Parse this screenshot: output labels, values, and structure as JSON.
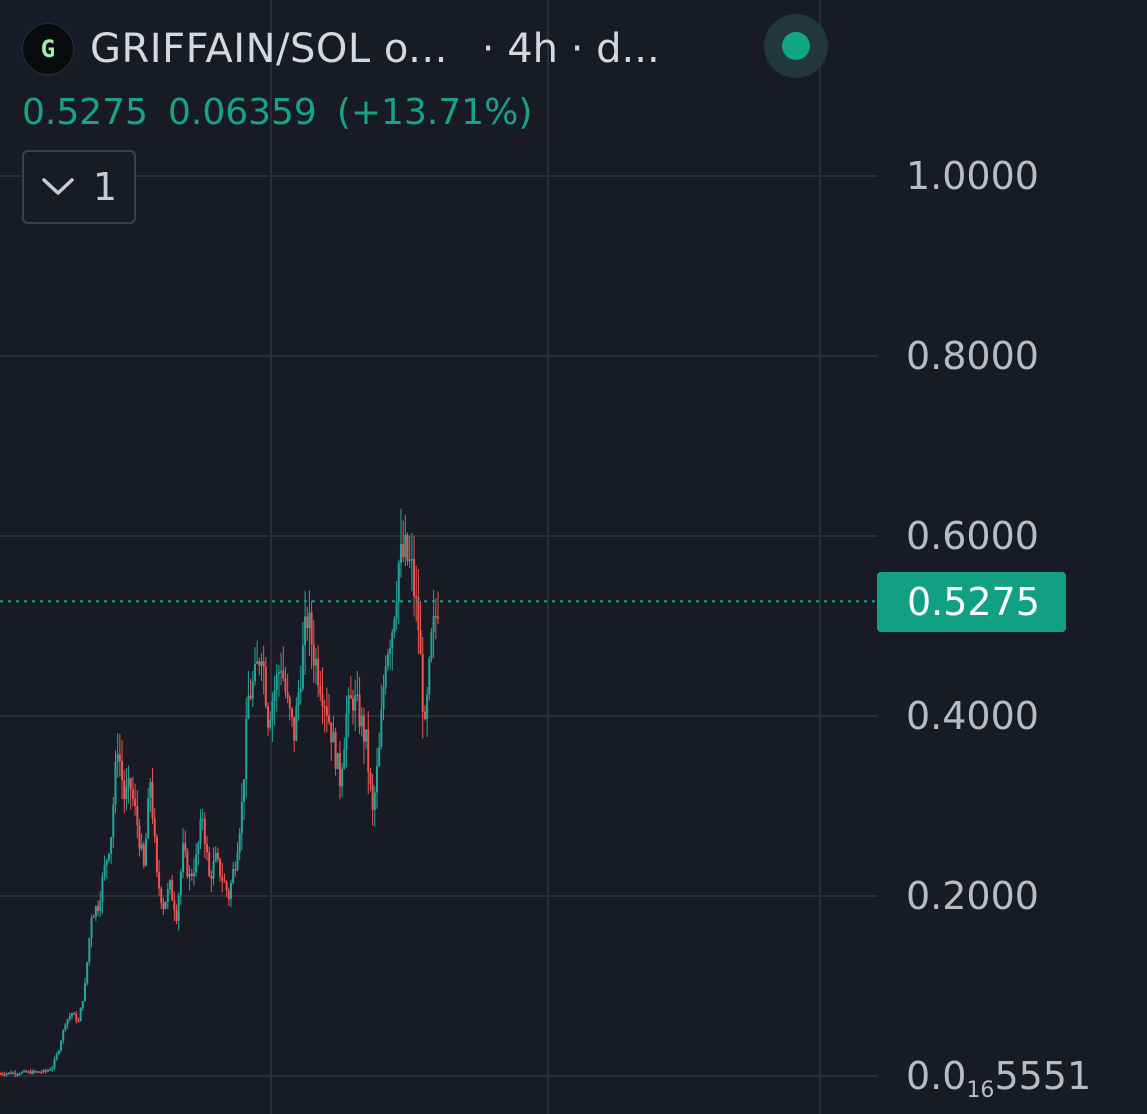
{
  "header": {
    "logo_letter": "G",
    "symbol": "GRIFFAIN/SOL o...",
    "interval": "· 4h · d...",
    "status_color": "#10a684"
  },
  "legend": {
    "last_price": "0.5275",
    "change": "0.06359",
    "change_pct": "(+13.71%)"
  },
  "indicators_toggle": {
    "count": "1"
  },
  "price_tag": "0.5275",
  "colors": {
    "background": "#181b26",
    "up": "#26a69a",
    "down": "#ef5350",
    "grid": "#2b2e39",
    "accent": "#12a085"
  },
  "chart_data": {
    "type": "candlestick",
    "title": "",
    "interval": "4h",
    "y_axis": {
      "ticks": [
        {
          "value": 1.0,
          "label": "1.0000"
        },
        {
          "value": 0.8,
          "label": "0.8000"
        },
        {
          "value": 0.6,
          "label": "0.6000"
        },
        {
          "value": 0.4,
          "label": "0.4000"
        },
        {
          "value": 0.2,
          "label": "0.2000"
        },
        {
          "value": 0.0,
          "label_prefix": "0.0",
          "label_sub": "16",
          "label_suffix": "5551"
        }
      ],
      "range": [
        -0.02,
        1.1
      ]
    },
    "last_price": 0.5275,
    "grid": true,
    "close_path": [
      [
        0,
        0.003
      ],
      [
        4,
        0.004
      ],
      [
        7,
        0.005
      ],
      [
        8,
        0.01
      ],
      [
        9,
        0.03
      ],
      [
        10,
        0.06
      ],
      [
        11,
        0.07
      ],
      [
        12,
        0.06
      ],
      [
        13,
        0.1
      ],
      [
        14,
        0.18
      ],
      [
        15,
        0.19
      ],
      [
        16,
        0.23
      ],
      [
        17,
        0.27
      ],
      [
        18,
        0.37
      ],
      [
        19,
        0.31
      ],
      [
        20,
        0.32
      ],
      [
        21,
        0.28
      ],
      [
        22,
        0.23
      ],
      [
        23,
        0.33
      ],
      [
        24,
        0.22
      ],
      [
        25,
        0.19
      ],
      [
        26,
        0.21
      ],
      [
        27,
        0.18
      ],
      [
        28,
        0.25
      ],
      [
        29,
        0.22
      ],
      [
        30,
        0.24
      ],
      [
        31,
        0.29
      ],
      [
        32,
        0.22
      ],
      [
        33,
        0.24
      ],
      [
        34,
        0.22
      ],
      [
        35,
        0.2
      ],
      [
        36,
        0.24
      ],
      [
        37,
        0.3
      ],
      [
        38,
        0.42
      ],
      [
        39,
        0.44
      ],
      [
        40,
        0.48
      ],
      [
        41,
        0.4
      ],
      [
        42,
        0.43
      ],
      [
        43,
        0.46
      ],
      [
        44,
        0.41
      ],
      [
        45,
        0.38
      ],
      [
        46,
        0.45
      ],
      [
        47,
        0.51
      ],
      [
        48,
        0.47
      ],
      [
        49,
        0.44
      ],
      [
        50,
        0.41
      ],
      [
        51,
        0.37
      ],
      [
        52,
        0.33
      ],
      [
        53,
        0.4
      ],
      [
        54,
        0.42
      ],
      [
        55,
        0.4
      ],
      [
        56,
        0.37
      ],
      [
        57,
        0.29
      ],
      [
        58,
        0.36
      ],
      [
        59,
        0.47
      ],
      [
        60,
        0.5
      ],
      [
        61,
        0.57
      ],
      [
        62,
        0.58
      ],
      [
        63,
        0.56
      ],
      [
        64,
        0.5
      ],
      [
        65,
        0.38
      ],
      [
        66,
        0.48
      ],
      [
        67,
        0.5275
      ]
    ]
  }
}
